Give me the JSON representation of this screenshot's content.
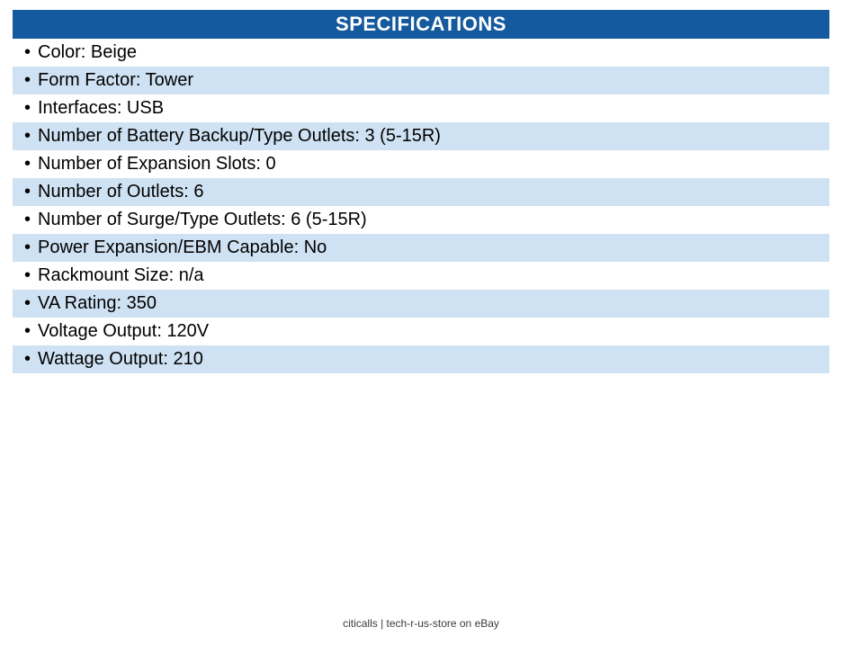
{
  "header": {
    "title": "SPECIFICATIONS",
    "bg_color": "#15599e",
    "text_color": "#ffffff"
  },
  "specs": {
    "bullet": "•",
    "stripe_color": "#cfe2f3",
    "items": [
      "Color: Beige",
      "Form Factor: Tower",
      "Interfaces: USB",
      "Number of Battery Backup/Type Outlets: 3 (5-15R)",
      "Number of Expansion Slots: 0",
      "Number of Outlets: 6",
      "Number of Surge/Type Outlets: 6 (5-15R)",
      "Power Expansion/EBM Capable: No",
      "Rackmount Size: n/a",
      "VA Rating: 350",
      "Voltage Output: 120V",
      "Wattage Output: 210"
    ]
  },
  "footer": {
    "text": "citicalls | tech-r-us-store on eBay"
  }
}
